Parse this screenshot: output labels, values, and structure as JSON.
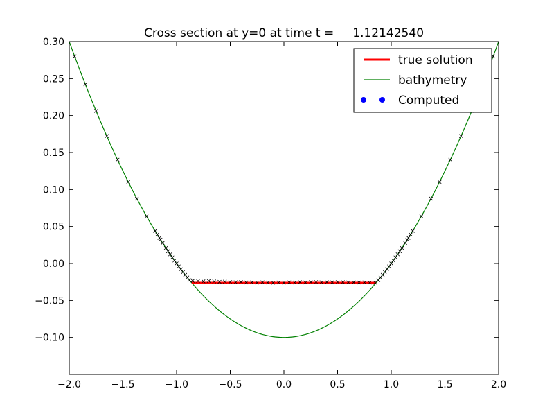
{
  "chart_data": {
    "type": "line",
    "title": "Cross section at y=0 at time t =     1.12142540",
    "xlabel": "",
    "ylabel": "",
    "xlim": [
      -2.0,
      2.0
    ],
    "ylim": [
      -0.15,
      0.3
    ],
    "xticks": [
      "−2.0",
      "−1.5",
      "−1.0",
      "−0.5",
      "0.0",
      "0.5",
      "1.0",
      "1.5",
      "2.0"
    ],
    "xtick_values": [
      -2.0,
      -1.5,
      -1.0,
      -0.5,
      0.0,
      0.5,
      1.0,
      1.5,
      2.0
    ],
    "yticks": [
      "−0.10",
      "−0.05",
      "0.00",
      "0.05",
      "0.10",
      "0.15",
      "0.20",
      "0.25",
      "0.30"
    ],
    "ytick_values": [
      -0.1,
      -0.05,
      0.0,
      0.05,
      0.1,
      0.15,
      0.2,
      0.25,
      0.3
    ],
    "grid": false,
    "legend_position": "top-right",
    "series": [
      {
        "name": "true solution",
        "style": "line",
        "color": "#ff0000",
        "x": [
          -0.859,
          0.859
        ],
        "y": [
          -0.0262,
          -0.0262
        ]
      },
      {
        "name": "bathymetry",
        "style": "line",
        "color": "#008000",
        "function": "0.1*(x^2 - 1)",
        "x_range": [
          -2.0,
          2.0
        ]
      },
      {
        "name": "Computed",
        "style": "marker",
        "color": "#0000ff",
        "legend_marker": "circle",
        "plot_marker": "x",
        "plot_color": "#000000",
        "x": [
          -1.95,
          -1.85,
          -1.75,
          -1.65,
          -1.55,
          -1.45,
          -1.37,
          -1.28,
          -1.2,
          -1.18,
          -1.16,
          -1.15,
          -1.13,
          -1.1,
          -1.08,
          -1.06,
          -1.04,
          -1.02,
          -1.0,
          -0.98,
          -0.96,
          -0.94,
          -0.92,
          -0.9,
          -0.88,
          -0.85,
          -0.8,
          -0.75,
          -0.7,
          -0.65,
          -0.6,
          -0.55,
          -0.5,
          -0.45,
          -0.4,
          -0.35,
          -0.3,
          -0.25,
          -0.2,
          -0.15,
          -0.1,
          -0.05,
          0.0,
          0.05,
          0.1,
          0.15,
          0.2,
          0.25,
          0.3,
          0.35,
          0.4,
          0.45,
          0.5,
          0.55,
          0.6,
          0.65,
          0.7,
          0.75,
          0.8,
          0.85,
          0.88,
          0.9,
          0.92,
          0.94,
          0.96,
          0.98,
          1.0,
          1.02,
          1.04,
          1.06,
          1.08,
          1.1,
          1.13,
          1.15,
          1.16,
          1.18,
          1.2,
          1.28,
          1.37,
          1.45,
          1.55,
          1.65,
          1.75,
          1.85,
          1.95
        ],
        "y": [
          0.28,
          0.2423,
          0.2063,
          0.1723,
          0.1403,
          0.1103,
          0.0877,
          0.0638,
          0.044,
          0.0392,
          0.0346,
          0.0323,
          0.0277,
          0.021,
          0.0166,
          0.0124,
          0.0082,
          0.004,
          0.0,
          -0.004,
          -0.0078,
          -0.0116,
          -0.0154,
          -0.019,
          -0.0226,
          -0.0235,
          -0.0238,
          -0.0242,
          -0.0236,
          -0.0244,
          -0.0249,
          -0.0246,
          -0.0252,
          -0.0255,
          -0.0251,
          -0.0257,
          -0.0256,
          -0.0259,
          -0.0255,
          -0.0258,
          -0.0261,
          -0.0257,
          -0.0259,
          -0.0256,
          -0.0258,
          -0.0254,
          -0.0257,
          -0.0253,
          -0.0252,
          -0.0255,
          -0.0253,
          -0.0256,
          -0.0252,
          -0.0254,
          -0.0256,
          -0.0255,
          -0.0258,
          -0.0256,
          -0.0259,
          -0.026,
          -0.0226,
          -0.019,
          -0.0154,
          -0.0116,
          -0.0078,
          -0.004,
          0.0,
          0.004,
          0.0082,
          0.0124,
          0.0166,
          0.021,
          0.0277,
          0.0323,
          0.0346,
          0.0392,
          0.044,
          0.0638,
          0.0877,
          0.1103,
          0.1403,
          0.1723,
          0.2063,
          0.2423,
          0.28
        ]
      }
    ]
  }
}
